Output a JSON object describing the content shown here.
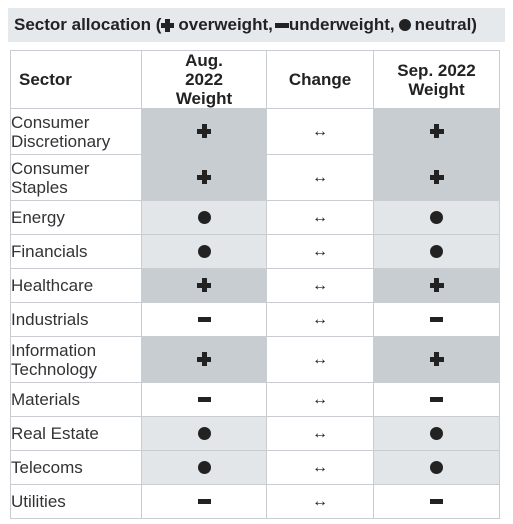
{
  "title": {
    "prefix": "Sector allocation (",
    "overweight": "overweight,",
    "underweight": "underweight,",
    "neutral": "neutral)"
  },
  "chart_data": {
    "type": "table",
    "columns": [
      "Sector",
      "Aug. 2022 Weight",
      "Change",
      "Sep. 2022 Weight"
    ],
    "legend": {
      "plus": "overweight",
      "minus": "underweight",
      "dot": "neutral"
    },
    "rows": [
      {
        "sector": "Consumer Discretionary",
        "aug": "plus",
        "change": "↔",
        "sep": "plus"
      },
      {
        "sector": "Consumer Staples",
        "aug": "plus",
        "change": "↔",
        "sep": "plus"
      },
      {
        "sector": "Energy",
        "aug": "dot",
        "change": "↔",
        "sep": "dot"
      },
      {
        "sector": "Financials",
        "aug": "dot",
        "change": "↔",
        "sep": "dot"
      },
      {
        "sector": "Healthcare",
        "aug": "plus",
        "change": "↔",
        "sep": "plus"
      },
      {
        "sector": "Industrials",
        "aug": "minus",
        "change": "↔",
        "sep": "minus"
      },
      {
        "sector": "Information Technology",
        "aug": "plus",
        "change": "↔",
        "sep": "plus"
      },
      {
        "sector": "Materials",
        "aug": "minus",
        "change": "↔",
        "sep": "minus"
      },
      {
        "sector": "Real Estate",
        "aug": "dot",
        "change": "↔",
        "sep": "dot"
      },
      {
        "sector": "Telecoms",
        "aug": "dot",
        "change": "↔",
        "sep": "dot"
      },
      {
        "sector": "Utilities",
        "aug": "minus",
        "change": "↔",
        "sep": "minus"
      }
    ],
    "colors": {
      "overweight_shade": "#c8cdd2",
      "neutral_shade": "#e3e6e9",
      "underweight_shade": "#ffffff",
      "border": "#c9cdd1"
    }
  }
}
